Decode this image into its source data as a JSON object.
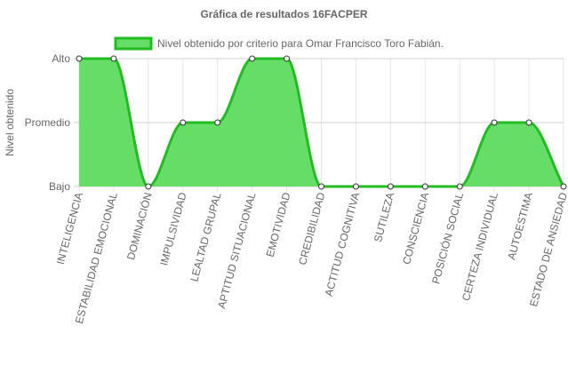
{
  "chart_data": {
    "type": "area",
    "title": "Gráfica de resultados 16FACPER",
    "ylabel": "Nivel obtenido",
    "xlabel": "",
    "y_levels": [
      "Bajo",
      "Promedio",
      "Alto"
    ],
    "ylim": [
      0,
      2
    ],
    "categories": [
      "INTELIGENCIA",
      "ESTABILIDAD EMOCIONAL",
      "DOMINACIÓN",
      "IMPULSIVIDAD",
      "LEALTAD GRUPAL",
      "APTITUD SITUACIONAL",
      "EMOTIVIDAD",
      "CREDIBILIDAD",
      "ACTITUD COGNITIVA",
      "SUTILEZA",
      "CONSCIENCIA",
      "POSICIÓN SOCIAL",
      "CERTEZA INDIVIDUAL",
      "AUTOESTIMA",
      "ESTADO DE ANSIEDAD"
    ],
    "series": [
      {
        "name": "Nivel obtenido por criterio para Omar Francisco Toro Fabián.",
        "values": [
          2,
          2,
          0,
          1,
          1,
          2,
          2,
          0,
          0,
          0,
          0,
          0,
          1,
          1,
          0
        ],
        "fill_color": "#66dd66",
        "line_color": "#22bb22"
      }
    ],
    "grid": true,
    "legend": "top"
  }
}
